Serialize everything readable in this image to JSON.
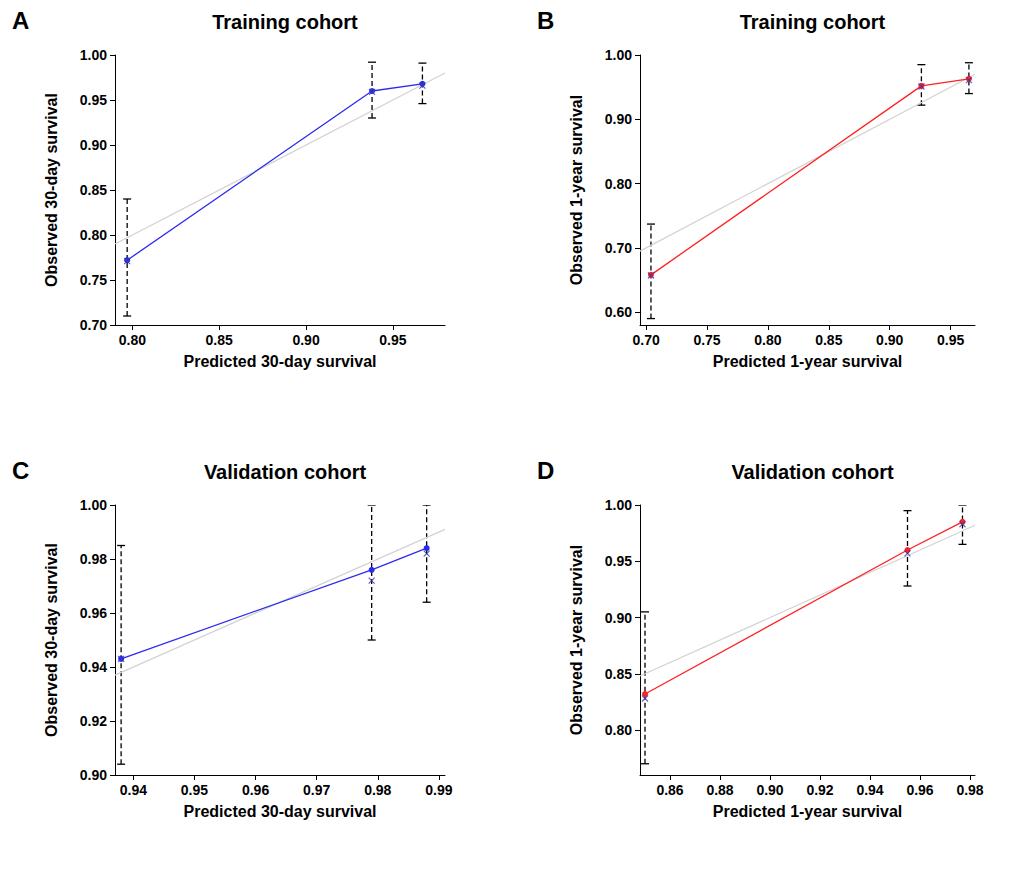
{
  "chart_data": [
    {
      "type": "line",
      "label": "A",
      "title": "Training cohort",
      "x_label": "Predicted 30-day survival",
      "y_label": "Observed 30-day survival",
      "xlim": [
        0.79,
        0.98
      ],
      "xticks": [
        {
          "value": 0.8,
          "label": "0.80"
        },
        {
          "value": 0.85,
          "label": "0.85"
        },
        {
          "value": 0.9,
          "label": "0.90"
        },
        {
          "value": 0.95,
          "label": "0.95"
        }
      ],
      "ylim": [
        0.7,
        1.0
      ],
      "yticks": [
        {
          "value": 0.7,
          "label": "0.70"
        },
        {
          "value": 0.75,
          "label": "0.75"
        },
        {
          "value": 0.8,
          "label": "0.80"
        },
        {
          "value": 0.85,
          "label": "0.85"
        },
        {
          "value": 0.9,
          "label": "0.90"
        },
        {
          "value": 0.95,
          "label": "0.95"
        },
        {
          "value": 1.0,
          "label": "1.00"
        }
      ],
      "series": [
        {
          "type": "line",
          "color": "#d3d3d3",
          "x": [
            0.79,
            0.98
          ],
          "values": [
            0.79,
            0.98
          ]
        },
        {
          "type": "line",
          "color": "#2b2bf0",
          "marker": "circle",
          "x": [
            0.797,
            0.938,
            0.967
          ],
          "values": [
            0.772,
            0.96,
            0.968
          ],
          "error_low": [
            0.71,
            0.93,
            0.946
          ],
          "error_high": [
            0.84,
            0.992,
            0.991
          ]
        },
        {
          "type": "scatter",
          "color": "#3a3aa8",
          "marker": "x",
          "x": [
            0.797,
            0.938,
            0.967
          ],
          "values": [
            0.771,
            0.959,
            0.966
          ]
        }
      ]
    },
    {
      "type": "line",
      "label": "B",
      "title": "Training cohort",
      "x_label": "Predicted 1-year survival",
      "y_label": "Observed 1-year survival",
      "xlim": [
        0.695,
        0.97
      ],
      "xticks": [
        {
          "value": 0.7,
          "label": "0.70"
        },
        {
          "value": 0.75,
          "label": "0.75"
        },
        {
          "value": 0.8,
          "label": "0.80"
        },
        {
          "value": 0.85,
          "label": "0.85"
        },
        {
          "value": 0.9,
          "label": "0.90"
        },
        {
          "value": 0.95,
          "label": "0.95"
        }
      ],
      "ylim": [
        0.58,
        1.0
      ],
      "yticks": [
        {
          "value": 0.6,
          "label": "0.60"
        },
        {
          "value": 0.7,
          "label": "0.70"
        },
        {
          "value": 0.8,
          "label": "0.80"
        },
        {
          "value": 0.9,
          "label": "0.90"
        },
        {
          "value": 1.0,
          "label": "1.00"
        }
      ],
      "series": [
        {
          "type": "line",
          "color": "#d3d3d3",
          "x": [
            0.695,
            0.97
          ],
          "values": [
            0.695,
            0.97
          ]
        },
        {
          "type": "line",
          "color": "#ff2020",
          "marker": "circle",
          "x": [
            0.704,
            0.926,
            0.965
          ],
          "values": [
            0.658,
            0.952,
            0.963
          ],
          "error_low": [
            0.59,
            0.922,
            0.94
          ],
          "error_high": [
            0.737,
            0.985,
            0.988
          ]
        },
        {
          "type": "scatter",
          "color": "#3a3aa8",
          "marker": "x",
          "x": [
            0.704,
            0.926,
            0.965
          ],
          "values": [
            0.657,
            0.951,
            0.961
          ]
        }
      ]
    },
    {
      "type": "line",
      "label": "C",
      "title": "Validation cohort",
      "x_label": "Predicted 30-day survival",
      "y_label": "Observed 30-day survival",
      "xlim": [
        0.937,
        0.991
      ],
      "xticks": [
        {
          "value": 0.94,
          "label": "0.94"
        },
        {
          "value": 0.95,
          "label": "0.95"
        },
        {
          "value": 0.96,
          "label": "0.96"
        },
        {
          "value": 0.97,
          "label": "0.97"
        },
        {
          "value": 0.98,
          "label": "0.98"
        },
        {
          "value": 0.99,
          "label": "0.99"
        }
      ],
      "ylim": [
        0.9,
        1.0
      ],
      "yticks": [
        {
          "value": 0.9,
          "label": "0.90"
        },
        {
          "value": 0.92,
          "label": "0.92"
        },
        {
          "value": 0.94,
          "label": "0.94"
        },
        {
          "value": 0.96,
          "label": "0.96"
        },
        {
          "value": 0.98,
          "label": "0.98"
        },
        {
          "value": 1.0,
          "label": "1.00"
        }
      ],
      "series": [
        {
          "type": "line",
          "color": "#d3d3d3",
          "x": [
            0.937,
            0.991
          ],
          "values": [
            0.937,
            0.991
          ]
        },
        {
          "type": "line",
          "color": "#2b2bf0",
          "marker": "circle",
          "x": [
            0.938,
            0.979,
            0.988
          ],
          "values": [
            0.943,
            0.976,
            0.984
          ],
          "error_low": [
            0.904,
            0.95,
            0.964
          ],
          "error_high": [
            0.985,
            1.0,
            1.0
          ]
        },
        {
          "type": "scatter",
          "color": "#3a3aa8",
          "marker": "x",
          "x": [
            0.938,
            0.979,
            0.988
          ],
          "values": [
            0.943,
            0.972,
            0.982
          ]
        }
      ]
    },
    {
      "type": "line",
      "label": "D",
      "title": "Validation cohort",
      "x_label": "Predicted 1-year survival",
      "y_label": "Observed 1-year survival",
      "xlim": [
        0.848,
        0.982
      ],
      "xticks": [
        {
          "value": 0.86,
          "label": "0.86"
        },
        {
          "value": 0.88,
          "label": "0.88"
        },
        {
          "value": 0.9,
          "label": "0.90"
        },
        {
          "value": 0.92,
          "label": "0.92"
        },
        {
          "value": 0.94,
          "label": "0.94"
        },
        {
          "value": 0.96,
          "label": "0.96"
        },
        {
          "value": 0.98,
          "label": "0.98"
        }
      ],
      "ylim": [
        0.76,
        1.0
      ],
      "yticks": [
        {
          "value": 0.8,
          "label": "0.80"
        },
        {
          "value": 0.85,
          "label": "0.85"
        },
        {
          "value": 0.9,
          "label": "0.90"
        },
        {
          "value": 0.95,
          "label": "0.95"
        },
        {
          "value": 1.0,
          "label": "1.00"
        }
      ],
      "series": [
        {
          "type": "line",
          "color": "#d3d3d3",
          "x": [
            0.848,
            0.982
          ],
          "values": [
            0.848,
            0.982
          ]
        },
        {
          "type": "line",
          "color": "#ff2020",
          "marker": "circle",
          "x": [
            0.85,
            0.955,
            0.977
          ],
          "values": [
            0.832,
            0.96,
            0.985
          ],
          "error_low": [
            0.77,
            0.928,
            0.965
          ],
          "error_high": [
            0.905,
            0.995,
            1.0
          ]
        },
        {
          "type": "scatter",
          "color": "#3a3aa8",
          "marker": "x",
          "x": [
            0.85,
            0.955,
            0.977
          ],
          "values": [
            0.828,
            0.957,
            0.983
          ]
        }
      ]
    }
  ]
}
